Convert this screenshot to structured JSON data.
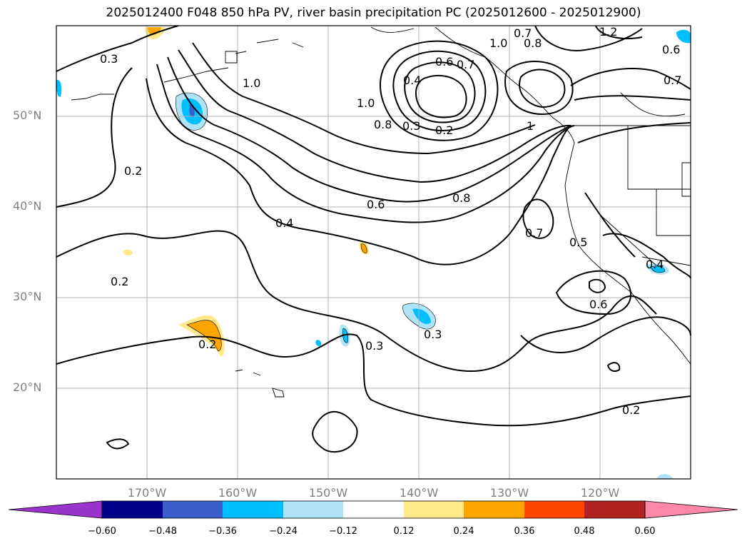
{
  "title": "2025012400 F048 850 hPa PV, river basin precipitation PC (2025012600 - 2025012900)",
  "lat_labels": [
    "50°N",
    "40°N",
    "30°N",
    "20°N"
  ],
  "lon_labels": [
    "170°W",
    "160°W",
    "150°W",
    "140°W",
    "130°W",
    "120°W"
  ],
  "contour_labels": [
    "0.3",
    "1.0",
    "0.2",
    "0.2",
    "0.4",
    "0.6",
    "0.8",
    "1.0",
    "0.8",
    "0.3",
    "0.2",
    "0.4",
    "0.6",
    "0.7",
    "1.0",
    "0.8",
    "1.2",
    "0.6",
    "0.7",
    "0.7",
    "0.7",
    "0.5",
    "0.6",
    "0.4",
    "0.2",
    "0.3",
    "0.3",
    "0.2",
    "1"
  ],
  "colorbar": {
    "ticks": [
      "−0.60",
      "−0.48",
      "−0.36",
      "−0.24",
      "−0.12",
      "0.12",
      "0.24",
      "0.36",
      "0.48",
      "0.60"
    ],
    "colors": [
      "#9933cc",
      "#00008b",
      "#3a5fcd",
      "#00bfff",
      "#aee3f8",
      "#ffffff",
      "#ffe98a",
      "#ffa500",
      "#ff4500",
      "#b22222",
      "#ff88aa"
    ]
  },
  "colors": {
    "grid": "#b0b0b0",
    "contour": "#000000",
    "axis_text": "#808080"
  }
}
